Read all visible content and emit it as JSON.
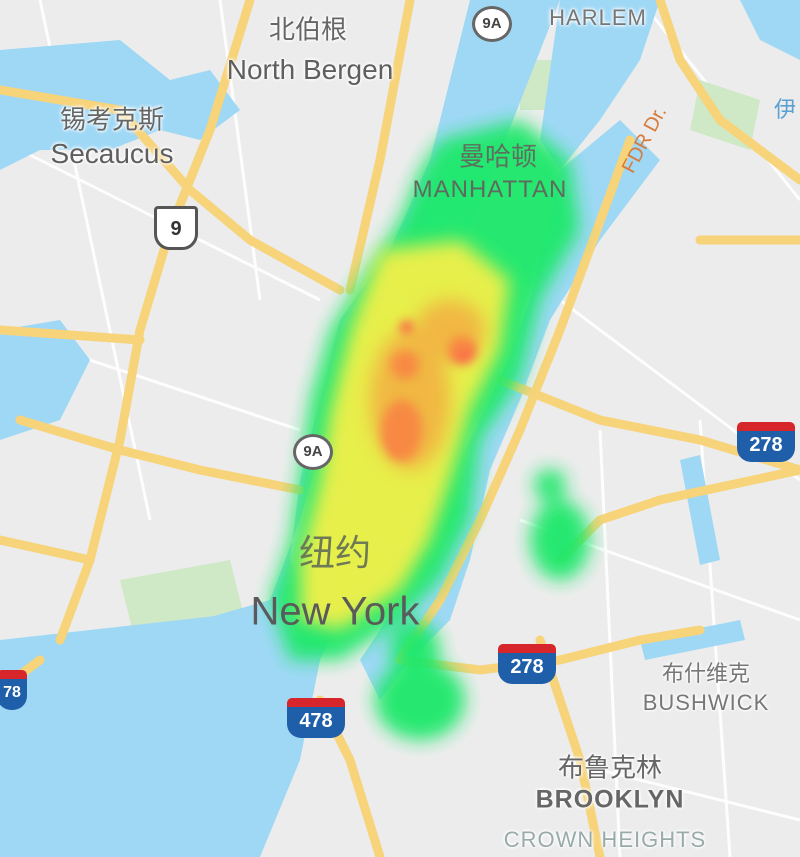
{
  "map": {
    "colors": {
      "water": "#9fd8f5",
      "land": "#ececec",
      "park": "#cfe8c6",
      "highway": "#f7d37a",
      "heat_low": "#1ee86a",
      "heat_mid": "#f2f04a",
      "heat_high": "#ff4d4d"
    },
    "places": {
      "north_bergen_cn": "北伯根",
      "north_bergen": "North Bergen",
      "secaucus_cn": "锡考克斯",
      "secaucus": "Secaucus",
      "manhattan_cn": "曼哈顿",
      "manhattan": "MANHATTAN",
      "harlem": "HARLEM",
      "new_york_cn": "纽约",
      "new_york": "New York",
      "bushwick_cn": "布什维克",
      "bushwick": "BUSHWICK",
      "brooklyn_cn": "布鲁克林",
      "brooklyn": "BROOKLYN",
      "crown_heights": "CROWN HEIGHTS",
      "edge_cn": "伊"
    },
    "shields": {
      "route_9a_top": "9A",
      "route_9": "9",
      "route_9a_mid": "9A",
      "i278_right": "278",
      "i278_center": "278",
      "i478": "478",
      "i78_left": "78"
    },
    "roads": {
      "fdr": "FDR Dr."
    }
  }
}
